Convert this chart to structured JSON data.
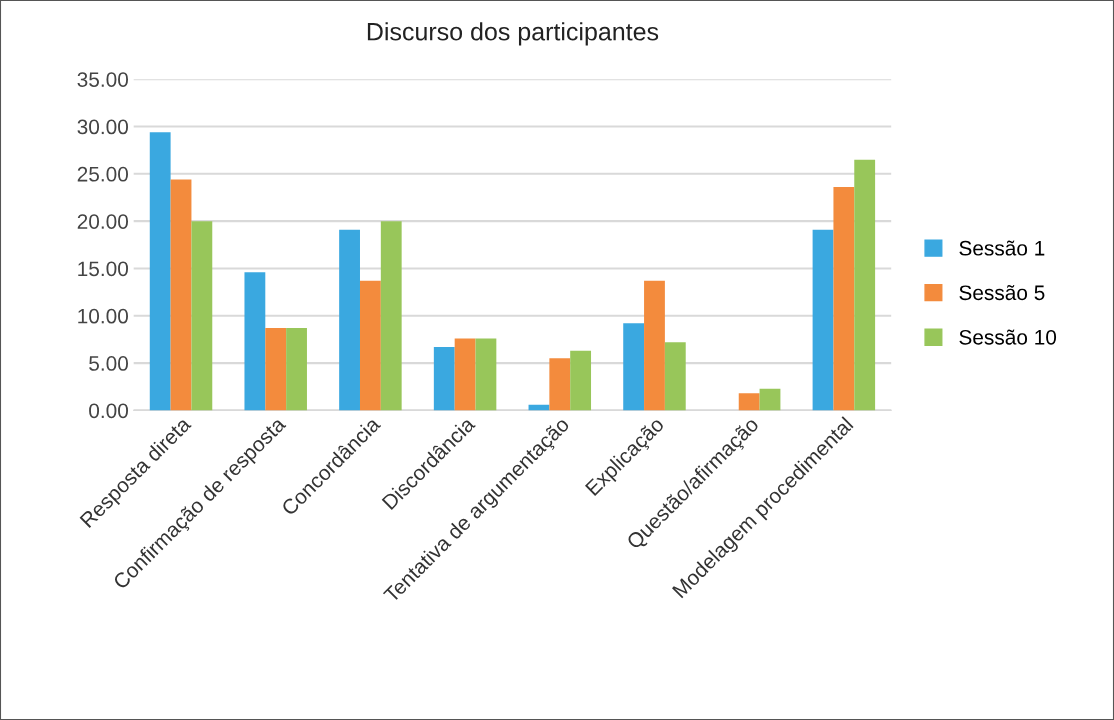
{
  "chart_data": {
    "type": "bar",
    "title": "Discurso dos participantes",
    "categories": [
      "Resposta direta",
      "Confirmação de resposta",
      "Concordância",
      "Discordância",
      "Tentativa de argumentação",
      "Explicação",
      "Questão/afirmação",
      "Modelagem procedimental"
    ],
    "series": [
      {
        "name": "Sessão 1",
        "color": "#3aa8e0",
        "values": [
          29.4,
          14.6,
          19.1,
          6.7,
          0.6,
          9.2,
          0,
          19.1
        ]
      },
      {
        "name": "Sessão 5",
        "color": "#f38b3d",
        "values": [
          24.4,
          8.7,
          13.7,
          7.6,
          5.5,
          13.7,
          1.8,
          23.6
        ]
      },
      {
        "name": "Sessão 10",
        "color": "#98c65a",
        "values": [
          20.0,
          8.7,
          20.0,
          7.6,
          6.3,
          7.2,
          2.3,
          26.5
        ]
      }
    ],
    "ylim": [
      0,
      35
    ],
    "yticks": [
      {
        "value": 0,
        "label": "0.00"
      },
      {
        "value": 5,
        "label": "5.00"
      },
      {
        "value": 10,
        "label": "10.00"
      },
      {
        "value": 15,
        "label": "15.00"
      },
      {
        "value": 20,
        "label": "20.00"
      },
      {
        "value": 25,
        "label": "25.00"
      },
      {
        "value": 30,
        "label": "30.00"
      },
      {
        "value": 35,
        "label": "35.00"
      }
    ],
    "grid": "y",
    "legend": "right"
  }
}
